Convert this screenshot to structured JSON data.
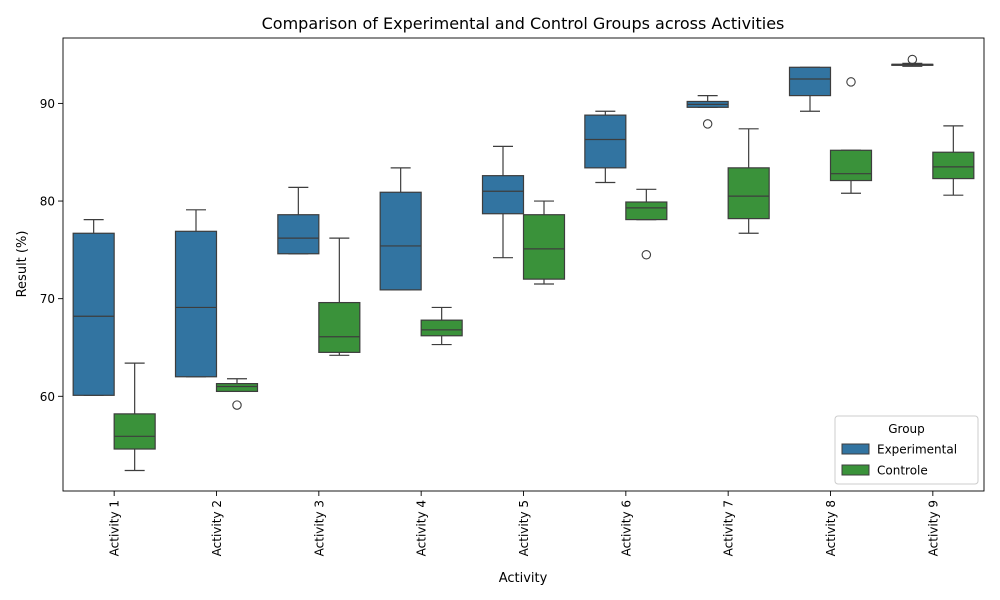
{
  "chart_data": {
    "type": "box",
    "title": "Comparison of Experimental and Control Groups across Activities",
    "xlabel": "Activity",
    "ylabel": "Result (%)",
    "ylim": [
      50.3,
      96.7
    ],
    "yticks": [
      60,
      70,
      80,
      90
    ],
    "grid": false,
    "categories": [
      "Activity 1",
      "Activity 2",
      "Activity 3",
      "Activity 4",
      "Activity 5",
      "Activity 6",
      "Activity 7",
      "Activity 8",
      "Activity 9"
    ],
    "legend": {
      "title": "Group",
      "position": "lower-right"
    },
    "series": [
      {
        "name": "Experimental",
        "color": "#3274a1",
        "boxes": [
          {
            "whislo": 60.1,
            "q1": 60.1,
            "med": 68.2,
            "q3": 76.7,
            "whishi": 78.1,
            "fliers": []
          },
          {
            "whislo": 62.0,
            "q1": 62.0,
            "med": 69.1,
            "q3": 76.9,
            "whishi": 79.1,
            "fliers": []
          },
          {
            "whislo": 74.6,
            "q1": 74.6,
            "med": 76.2,
            "q3": 78.6,
            "whishi": 81.4,
            "fliers": []
          },
          {
            "whislo": 70.9,
            "q1": 70.9,
            "med": 75.4,
            "q3": 80.9,
            "whishi": 83.4,
            "fliers": []
          },
          {
            "whislo": 74.2,
            "q1": 78.7,
            "med": 81.0,
            "q3": 82.6,
            "whishi": 85.6,
            "fliers": []
          },
          {
            "whislo": 81.9,
            "q1": 83.4,
            "med": 86.3,
            "q3": 88.8,
            "whishi": 89.2,
            "fliers": []
          },
          {
            "whislo": 89.6,
            "q1": 89.6,
            "med": 89.9,
            "q3": 90.2,
            "whishi": 90.8,
            "fliers": [
              87.9
            ]
          },
          {
            "whislo": 89.2,
            "q1": 90.8,
            "med": 92.5,
            "q3": 93.7,
            "whishi": 93.7,
            "fliers": []
          },
          {
            "whislo": 93.8,
            "q1": 93.9,
            "med": 94.0,
            "q3": 94.0,
            "whishi": 94.1,
            "fliers": [
              94.5
            ]
          }
        ]
      },
      {
        "name": "Controle",
        "color": "#3a923a",
        "boxes": [
          {
            "whislo": 52.4,
            "q1": 54.6,
            "med": 55.9,
            "q3": 58.2,
            "whishi": 63.4,
            "fliers": []
          },
          {
            "whislo": 60.5,
            "q1": 60.5,
            "med": 61.0,
            "q3": 61.3,
            "whishi": 61.8,
            "fliers": [
              59.1
            ]
          },
          {
            "whislo": 64.2,
            "q1": 64.5,
            "med": 66.1,
            "q3": 69.6,
            "whishi": 76.2,
            "fliers": []
          },
          {
            "whislo": 65.3,
            "q1": 66.2,
            "med": 66.8,
            "q3": 67.8,
            "whishi": 69.1,
            "fliers": []
          },
          {
            "whislo": 71.5,
            "q1": 72.0,
            "med": 75.1,
            "q3": 78.6,
            "whishi": 80.0,
            "fliers": []
          },
          {
            "whislo": 78.1,
            "q1": 78.1,
            "med": 79.3,
            "q3": 79.9,
            "whishi": 81.2,
            "fliers": [
              74.5
            ]
          },
          {
            "whislo": 76.7,
            "q1": 78.2,
            "med": 80.5,
            "q3": 83.4,
            "whishi": 87.4,
            "fliers": []
          },
          {
            "whislo": 80.8,
            "q1": 82.1,
            "med": 82.8,
            "q3": 85.2,
            "whishi": 85.2,
            "fliers": [
              92.2
            ]
          },
          {
            "whislo": 80.6,
            "q1": 82.3,
            "med": 83.5,
            "q3": 85.0,
            "whishi": 87.7,
            "fliers": []
          }
        ]
      }
    ]
  }
}
